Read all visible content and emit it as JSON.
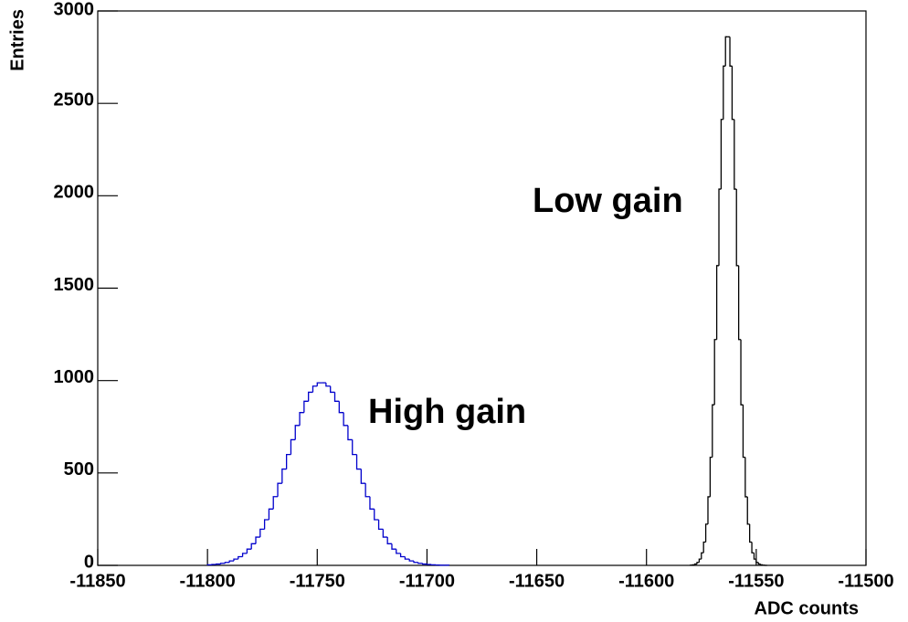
{
  "chart_data": {
    "type": "histogram",
    "x_label": "ADC counts",
    "y_label": "Entries",
    "xlim": [
      -11850,
      -11500
    ],
    "ylim": [
      0,
      3000
    ],
    "xticks": [
      -11850,
      -11800,
      -11750,
      -11700,
      -11650,
      -11600,
      -11550,
      -11500
    ],
    "yticks": [
      0,
      500,
      1000,
      1500,
      2000,
      2500,
      3000
    ],
    "annotations": [
      "Low gain",
      "High gain"
    ],
    "series": [
      {
        "color": "#0000cc",
        "bins": [
          -11800,
          -11798,
          -11796,
          -11794,
          -11792,
          -11790,
          -11788,
          -11786,
          -11784,
          -11782,
          -11780,
          -11778,
          -11776,
          -11774,
          -11772,
          -11770,
          -11768,
          -11766,
          -11764,
          -11762,
          -11760,
          -11758,
          -11756,
          -11754,
          -11752,
          -11750,
          -11748,
          -11746,
          -11744,
          -11742,
          -11740,
          -11738,
          -11736,
          -11734,
          -11732,
          -11730,
          -11728,
          -11726,
          -11724,
          -11722,
          -11720,
          -11718,
          -11716,
          -11714,
          -11712,
          -11710,
          -11708,
          -11706,
          -11704,
          -11702,
          -11700,
          -11698,
          -11696,
          -11694,
          -11692,
          -11690
        ],
        "values": [
          3,
          5,
          7,
          11,
          16,
          24,
          34,
          47,
          65,
          88,
          117,
          153,
          196,
          247,
          305,
          372,
          444,
          521,
          600,
          680,
          757,
          827,
          888,
          937,
          970,
          988,
          988,
          970,
          937,
          888,
          827,
          757,
          680,
          600,
          521,
          444,
          372,
          305,
          247,
          196,
          153,
          117,
          88,
          65,
          47,
          34,
          24,
          16,
          11,
          7,
          5,
          3,
          2,
          1,
          1
        ]
      },
      {
        "color": "#000000",
        "bins": [
          -11580,
          -11579,
          -11578,
          -11577,
          -11576,
          -11575,
          -11574,
          -11573,
          -11572,
          -11571,
          -11570,
          -11569,
          -11568,
          -11567,
          -11566,
          -11565,
          -11564,
          -11563,
          -11562,
          -11561,
          -11560,
          -11559,
          -11558,
          -11557,
          -11556,
          -11555,
          -11554,
          -11553,
          -11552,
          -11551,
          -11550,
          -11549,
          -11548,
          -11547,
          -11546,
          -11545
        ],
        "values": [
          1,
          3,
          7,
          16,
          34,
          68,
          126,
          223,
          371,
          585,
          869,
          1222,
          1622,
          2036,
          2413,
          2702,
          2860,
          2860,
          2702,
          2413,
          2036,
          1622,
          1222,
          869,
          585,
          371,
          223,
          126,
          68,
          34,
          16,
          7,
          3,
          1,
          0
        ]
      }
    ]
  }
}
